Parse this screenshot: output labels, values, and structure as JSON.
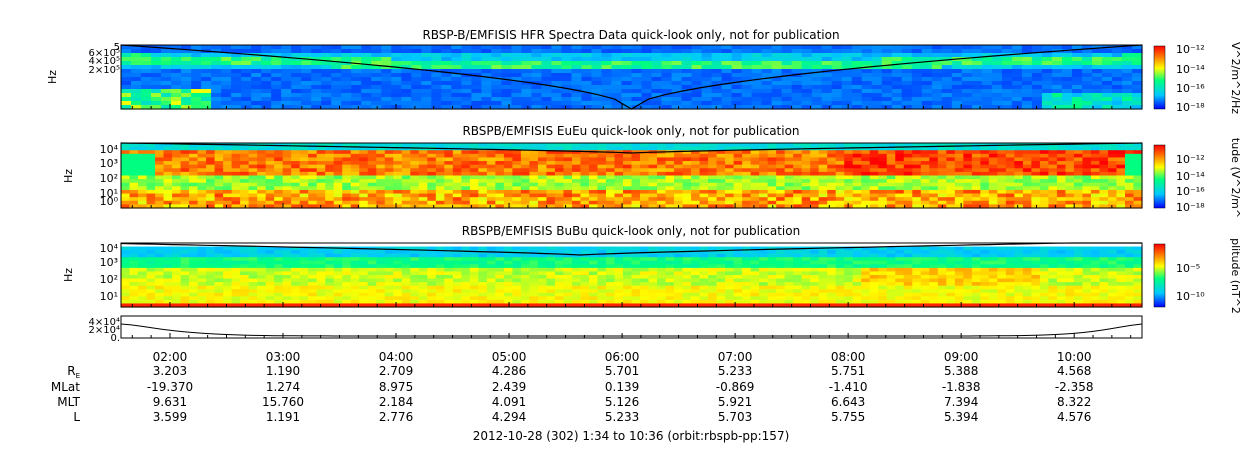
{
  "chart_data": {
    "type": "heatmap",
    "x_range": [
      "01:34",
      "10:36"
    ],
    "x_ticks": [
      "02:00",
      "03:00",
      "04:00",
      "05:00",
      "06:00",
      "07:00",
      "08:00",
      "09:00",
      "10:00"
    ],
    "panels": [
      {
        "title": "RBSP-B/EMFISIS  HFR Spectra Data quick-look only, not for publication",
        "ylabel": "Hz",
        "y_scale": "linear",
        "y_ticks": [
          "2×10⁵",
          "4×10⁵",
          "6×10⁵",
          "5"
        ],
        "colorbar_label": "V^2/m^2/Hz",
        "colorbar_ticks": [
          "10⁻¹²",
          "10⁻¹⁴",
          "10⁻¹⁶",
          "10⁻¹⁸"
        ],
        "colormap": [
          "#0000ff",
          "#00c8ff",
          "#00ff80",
          "#ffff00",
          "#ff8000",
          "#ff0000"
        ]
      },
      {
        "title": "RBSPB/EMFISIS  EuEu quick-look only, not for publication",
        "ylabel": "Hz",
        "y_scale": "log",
        "y_ticks": [
          "10⁴",
          "10³",
          "10²",
          "10¹",
          "10⁰"
        ],
        "colorbar_label": "tude (V^2/m^",
        "colorbar_ticks": [
          "10⁻¹²",
          "10⁻¹⁴",
          "10⁻¹⁶",
          "10⁻¹⁸"
        ],
        "colormap": [
          "#0000ff",
          "#00c8ff",
          "#00ff80",
          "#ffff00",
          "#ff8000",
          "#ff0000"
        ]
      },
      {
        "title": "RBSPB/EMFISIS  BuBu quick-look only, not for publication",
        "ylabel": "Hz",
        "y_scale": "log",
        "y_ticks": [
          "10⁴",
          "10³",
          "10²",
          "10¹"
        ],
        "colorbar_label": "plitude (nT^2",
        "colorbar_ticks": [
          "10⁻⁵",
          "10⁻¹⁰"
        ],
        "colormap": [
          "#0000ff",
          "#00c8ff",
          "#00ff80",
          "#ffff00",
          "#ff8000",
          "#ff0000"
        ]
      },
      {
        "y_ticks": [
          "4×10⁴",
          "2×10⁴",
          "0."
        ]
      }
    ],
    "ephemeris": {
      "rows": [
        {
          "label": "R",
          "sub": "E",
          "values": [
            "3.203",
            "1.190",
            "2.709",
            "4.286",
            "5.701",
            "5.233",
            "5.751",
            "5.388",
            "4.568"
          ]
        },
        {
          "label": "MLat",
          "values": [
            "-19.370",
            "1.274",
            "8.975",
            "2.439",
            "0.139",
            "-0.869",
            "-1.410",
            "-1.838",
            "-2.358"
          ]
        },
        {
          "label": "MLT",
          "values": [
            "9.631",
            "15.760",
            "2.184",
            "4.091",
            "5.126",
            "5.921",
            "6.643",
            "7.394",
            "8.322"
          ]
        },
        {
          "label": "L",
          "values": [
            "3.599",
            "1.191",
            "2.776",
            "4.294",
            "5.233",
            "5.703",
            "5.755",
            "5.394",
            "4.576"
          ]
        }
      ]
    },
    "footer": "2012-10-28 (302) 1:34 to 10:36 (orbit:rbspb-pp:157)"
  }
}
